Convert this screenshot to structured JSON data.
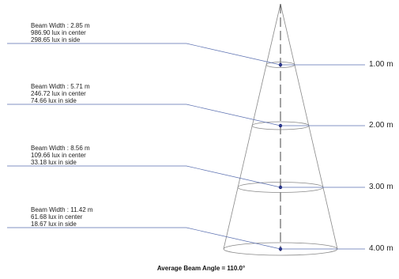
{
  "colors": {
    "outline": "#888888",
    "leader": "#5a6fb0",
    "center_dot": "#1a237e",
    "axis": "#333333"
  },
  "levels": [
    {
      "distance": "1.00 m",
      "beam_width": "Beam Width : 2.85 m",
      "center_lux": "986.90 lux in center",
      "side_lux": "298.65 lux in side"
    },
    {
      "distance": "2.00 m",
      "beam_width": "Beam Width : 5.71 m",
      "center_lux": "246.72 lux in center",
      "side_lux": "74.66 lux in side"
    },
    {
      "distance": "3.00 m",
      "beam_width": "Beam Width : 8.56 m",
      "center_lux": "109.66 lux in center",
      "side_lux": "33.18 lux in side"
    },
    {
      "distance": "4.00 m",
      "beam_width": "Beam Width : 11.42 m",
      "center_lux": "61.68 lux in center",
      "side_lux": "18.67 lux in side"
    }
  ],
  "caption": "Average Beam Angle = 110.0°"
}
